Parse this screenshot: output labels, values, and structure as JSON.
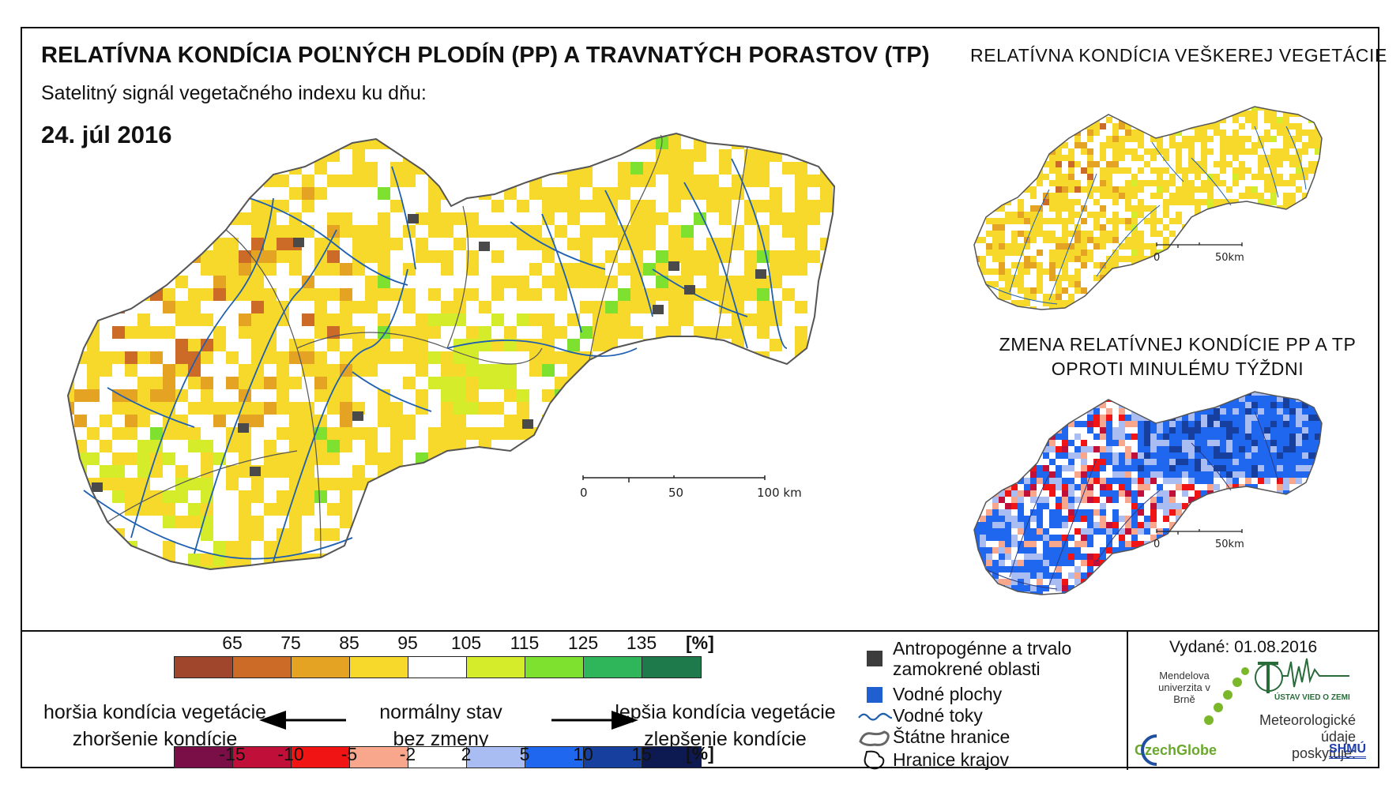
{
  "titles": {
    "main": "RELATÍVNA KONDÍCIA POĽNÝCH PLODÍN (PP) A TRAVNATÝCH PORASTOV (TP)",
    "side": "RELATÍVNA KONDÍCIA VEŠKEREJ VEGETÁCIE",
    "subtitle": "Satelitný signál vegetačného indexu ku dňu:",
    "date": "24. júl 2016",
    "change_line1": "ZMENA RELATÍVNEJ KONDÍCIE PP A TP",
    "change_line2": "OPROTI MINULÉMU TÝŽDNI"
  },
  "scale_main": {
    "labels": [
      "0",
      "50",
      "100 km"
    ]
  },
  "scale_small": {
    "labels": [
      "0",
      "50km"
    ]
  },
  "scale_small2": {
    "labels": [
      "0",
      "50km"
    ]
  },
  "condition_scale": {
    "unit": "[%]",
    "ticks": [
      "65",
      "75",
      "85",
      "95",
      "105",
      "115",
      "125",
      "135"
    ],
    "colors": [
      "#a0462c",
      "#cc6a28",
      "#e5a323",
      "#f6d92b",
      "#ffffff",
      "#d4ec2a",
      "#7ee02f",
      "#2fb55a",
      "#1e7a4a"
    ]
  },
  "change_scale": {
    "unit": "[%]",
    "ticks": [
      "-15",
      "-10",
      "-5",
      "-2",
      "2",
      "5",
      "10",
      "15"
    ],
    "colors": [
      "#7a0f47",
      "#c01039",
      "#f01414",
      "#f8a68c",
      "#ffffff",
      "#a9bdf3",
      "#1f67ef",
      "#163f9e",
      "#0d1a52"
    ]
  },
  "legend_labels": {
    "worse_condition": "horšia kondícia vegetácie",
    "worsening": "zhoršenie kondície",
    "normal": "normálny stav",
    "no_change": "bez zmeny",
    "better_condition": "lepšia kondícia vegetácie",
    "improvement": "zlepšenie kondície"
  },
  "map_legend": {
    "anthropogenic_1": "Antropogénne a trvalo",
    "anthropogenic_2": "zamokrené oblasti",
    "water_bodies": "Vodné plochy",
    "rivers": "Vodné toky",
    "state_border": "Štátne hranice",
    "region_border": "Hranice krajov"
  },
  "issued": "Vydané: 01.08.2016",
  "logos": {
    "mendel": "Mendelova univerzita v Brně",
    "czechglobe": "CzechGlobe",
    "ustav": "ÚSTAV VIED O ZEMI",
    "meteo_1": "Meteorologické",
    "meteo_2": "údaje",
    "meteo_3": "poskytuje:",
    "shmu": "SHMÚ"
  },
  "colors": {
    "river": "#1f5fb0",
    "urban": "#4a4a4a",
    "border": "#555555"
  }
}
